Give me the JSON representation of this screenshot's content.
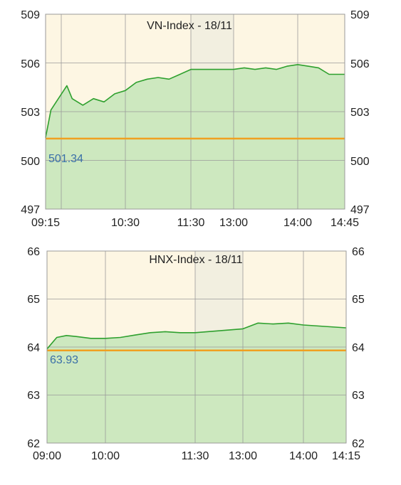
{
  "charts": [
    {
      "type": "line",
      "title": "VN-Index - 18/11",
      "ref_label": "501.34",
      "ref_value": 501.34,
      "ylim": [
        497,
        509
      ],
      "yticks": [
        "509",
        "506",
        "503",
        "500",
        "497"
      ],
      "xticks": [
        "09:15",
        "10:30",
        "11:30",
        "13:00",
        "14:00",
        "14:45"
      ],
      "colors": {
        "line": "#2ea02e",
        "fill": "#cde8bf",
        "ref": "#f0a020",
        "bg": "#fdf6e3",
        "lunch": "#f2efe0",
        "grid": "#9a9a9a",
        "ref_text": "#3a6fa8"
      },
      "chart_data": {
        "type": "area",
        "title": "VN-Index - 18/11",
        "x_sessions": [
          "09:15-11:30",
          "11:30-13:00 (break)",
          "13:00-14:45"
        ],
        "x_sample": [
          "09:15",
          "09:20",
          "09:25",
          "09:35",
          "09:40",
          "09:50",
          "10:00",
          "10:10",
          "10:20",
          "10:30",
          "10:40",
          "10:50",
          "11:00",
          "11:10",
          "11:20",
          "11:30",
          "13:00",
          "13:10",
          "13:20",
          "13:30",
          "13:40",
          "13:50",
          "14:00",
          "14:10",
          "14:20",
          "14:30",
          "14:45"
        ],
        "values": [
          501.4,
          503.1,
          503.6,
          504.6,
          503.8,
          503.4,
          503.8,
          503.6,
          504.1,
          504.3,
          504.8,
          505.0,
          505.1,
          505.0,
          505.3,
          505.6,
          505.6,
          505.7,
          505.6,
          505.7,
          505.6,
          505.8,
          505.9,
          505.8,
          505.7,
          505.3,
          505.3
        ],
        "reference": 501.34,
        "ylim": [
          497,
          509
        ]
      }
    },
    {
      "type": "line",
      "title": "HNX-Index - 18/11",
      "ref_label": "63.93",
      "ref_value": 63.93,
      "ylim": [
        62,
        66
      ],
      "yticks": [
        "66",
        "65",
        "64",
        "63",
        "62"
      ],
      "xticks": [
        "09:00",
        "10:00",
        "11:30",
        "13:00",
        "14:00",
        "14:15"
      ],
      "colors": {
        "line": "#2ea02e",
        "fill": "#cde8bf",
        "ref": "#f0a020",
        "bg": "#fdf6e3",
        "lunch": "#f2efe0",
        "grid": "#9a9a9a",
        "ref_text": "#3a6fa8"
      },
      "chart_data": {
        "type": "area",
        "title": "HNX-Index - 18/11",
        "x_sessions": [
          "09:00-11:30",
          "11:30-13:00 (break)",
          "13:00-14:15"
        ],
        "x_sample": [
          "09:00",
          "09:10",
          "09:20",
          "09:30",
          "09:45",
          "10:00",
          "10:15",
          "10:30",
          "10:45",
          "11:00",
          "11:15",
          "11:30",
          "13:00",
          "13:15",
          "13:30",
          "13:45",
          "14:00",
          "14:15"
        ],
        "values": [
          63.96,
          64.2,
          64.24,
          64.22,
          64.18,
          64.18,
          64.2,
          64.25,
          64.3,
          64.32,
          64.3,
          64.3,
          64.38,
          64.5,
          64.48,
          64.5,
          64.46,
          64.4
        ],
        "reference": 63.93,
        "ylim": [
          62,
          66
        ]
      }
    }
  ]
}
